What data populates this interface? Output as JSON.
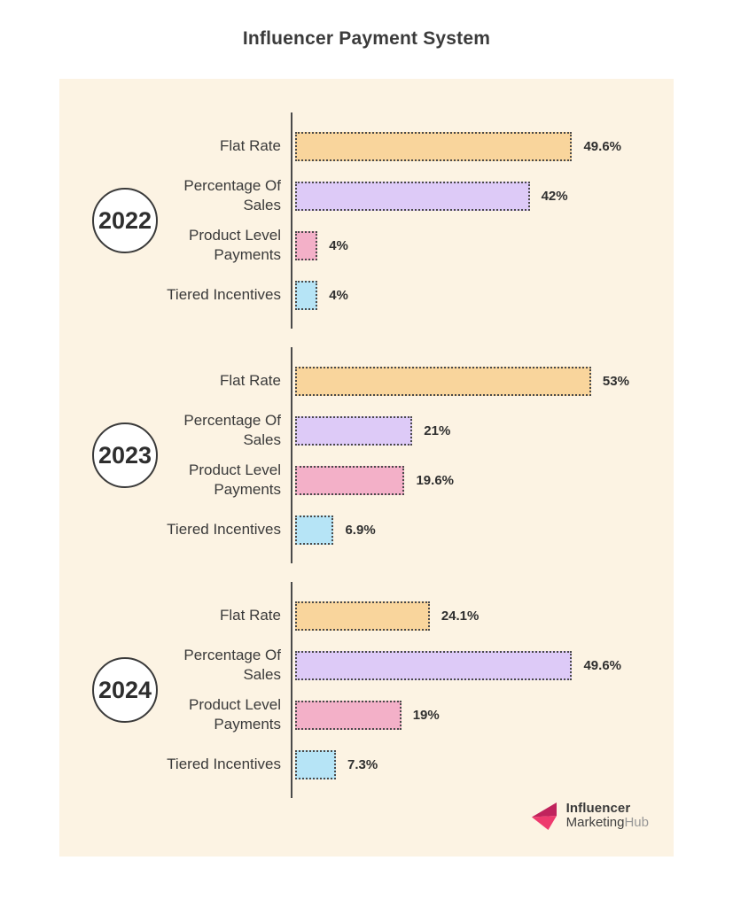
{
  "title": "Influencer Payment System",
  "panel": {
    "background": "#fcf3e3"
  },
  "palette": {
    "panel_bg": "#fcf3e3",
    "axis": "#4a4a4a",
    "bar_border": "#4a4a4a",
    "title_text": "#3b3b3b",
    "label_text": "#3a3a3a",
    "value_text": "#2f2f2f",
    "circle_border": "#3a3a3a",
    "circle_bg": "#ffffff"
  },
  "chart_data": {
    "type": "bar",
    "orientation": "horizontal",
    "title": "Influencer Payment System",
    "unit": "percent",
    "xlim": [
      0,
      55
    ],
    "grid": false,
    "legend": false,
    "categories": [
      "Flat Rate",
      "Percentage Of Sales",
      "Product Level Payments",
      "Tiered Incentives"
    ],
    "category_colors": [
      "#f9d59c",
      "#ddcaf7",
      "#f3b0c8",
      "#b6e4f6"
    ],
    "groups": [
      {
        "year": "2022",
        "values": [
          49.6,
          42,
          4,
          4
        ],
        "value_labels": [
          "49.6%",
          "42%",
          "4%",
          "4%"
        ]
      },
      {
        "year": "2023",
        "values": [
          53,
          21,
          19.6,
          6.9
        ],
        "value_labels": [
          "53%",
          "21%",
          "19.6%",
          "6.9%"
        ]
      },
      {
        "year": "2024",
        "values": [
          24.1,
          49.6,
          19,
          7.3
        ],
        "value_labels": [
          "24.1%",
          "49.6%",
          "19%",
          "7.3%"
        ]
      }
    ]
  },
  "logo": {
    "line1": "Influencer",
    "line2_main": "Marketing",
    "line2_light": "Hub",
    "icon": "arrow-left-icon",
    "icon_color": "#ee3a6e",
    "icon_color_dark": "#c0235c"
  }
}
